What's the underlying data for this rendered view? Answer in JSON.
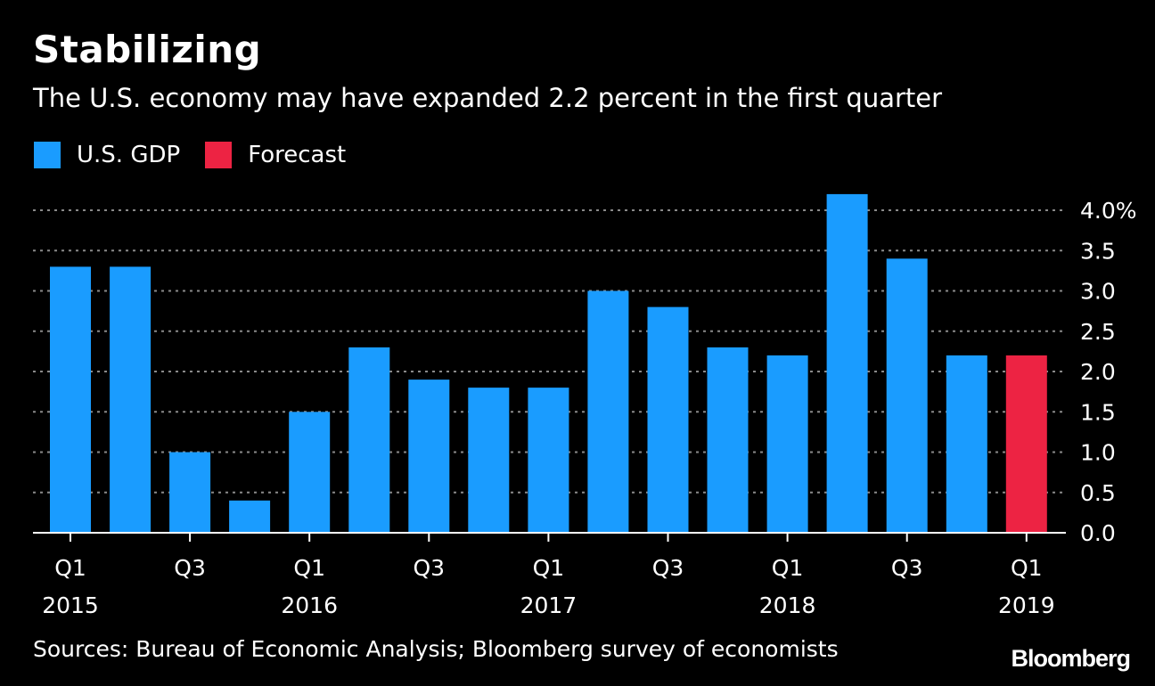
{
  "title": "Stabilizing",
  "subtitle": "The U.S. economy may have expanded 2.2 percent in the first quarter",
  "legend": [
    {
      "label": "U.S. GDP",
      "color": "#1a9cff"
    },
    {
      "label": "Forecast",
      "color": "#ed2343"
    }
  ],
  "source": "Sources: Bureau of Economic Analysis; Bloomberg survey of economists",
  "brand": "Bloomberg",
  "chart_data": {
    "type": "bar",
    "title": "Stabilizing",
    "subtitle": "The U.S. economy may have expanded 2.2 percent in the first quarter",
    "xlabel": "",
    "ylabel": "",
    "ylim": [
      0,
      4.0
    ],
    "grid": true,
    "categories": [
      "Q1 2015",
      "Q2 2015",
      "Q3 2015",
      "Q4 2015",
      "Q1 2016",
      "Q2 2016",
      "Q3 2016",
      "Q4 2016",
      "Q1 2017",
      "Q2 2017",
      "Q3 2017",
      "Q4 2017",
      "Q1 2018",
      "Q2 2018",
      "Q3 2018",
      "Q4 2018",
      "Q1 2019"
    ],
    "series": [
      {
        "name": "U.S. GDP",
        "color": "#1a9cff",
        "values": [
          3.3,
          3.3,
          1.0,
          0.4,
          1.5,
          2.3,
          1.9,
          1.8,
          1.8,
          3.0,
          2.8,
          2.3,
          2.2,
          4.2,
          3.4,
          2.2,
          null
        ]
      },
      {
        "name": "Forecast",
        "color": "#ed2343",
        "values": [
          null,
          null,
          null,
          null,
          null,
          null,
          null,
          null,
          null,
          null,
          null,
          null,
          null,
          null,
          null,
          null,
          2.2
        ]
      }
    ],
    "y_ticks": [
      {
        "value": 0.0,
        "label": "0.0"
      },
      {
        "value": 0.5,
        "label": "0.5"
      },
      {
        "value": 1.0,
        "label": "1.0"
      },
      {
        "value": 1.5,
        "label": "1.5"
      },
      {
        "value": 2.0,
        "label": "2.0"
      },
      {
        "value": 2.5,
        "label": "2.5"
      },
      {
        "value": 3.0,
        "label": "3.0"
      },
      {
        "value": 3.5,
        "label": "3.5"
      },
      {
        "value": 4.0,
        "label": "4.0%"
      }
    ],
    "x_ticks": [
      {
        "index": 0,
        "quarter": "Q1",
        "year": "2015"
      },
      {
        "index": 2,
        "quarter": "Q3",
        "year": ""
      },
      {
        "index": 4,
        "quarter": "Q1",
        "year": "2016"
      },
      {
        "index": 6,
        "quarter": "Q3",
        "year": ""
      },
      {
        "index": 8,
        "quarter": "Q1",
        "year": "2017"
      },
      {
        "index": 10,
        "quarter": "Q3",
        "year": ""
      },
      {
        "index": 12,
        "quarter": "Q1",
        "year": "2018"
      },
      {
        "index": 14,
        "quarter": "Q3",
        "year": ""
      },
      {
        "index": 16,
        "quarter": "Q1",
        "year": "2019"
      }
    ]
  }
}
